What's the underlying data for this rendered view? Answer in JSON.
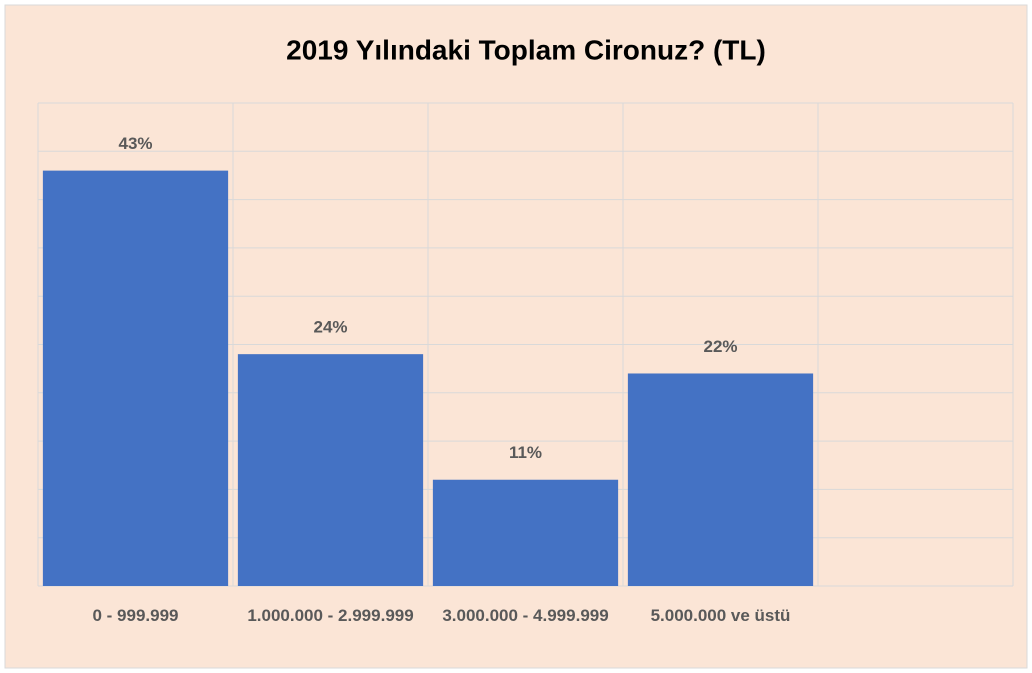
{
  "chart_data": {
    "type": "bar",
    "title": "2019 Yılındaki Toplam Cironuz? (TL)",
    "categories": [
      "0 - 999.999",
      "1.000.000 - 2.999.999",
      "3.000.000 - 4.999.999",
      "5.000.000 ve üstü",
      null
    ],
    "values": [
      43,
      24,
      11,
      22,
      null
    ],
    "value_labels": [
      "43%",
      "24%",
      "11%",
      "22%",
      null
    ],
    "color": "#4472c4",
    "ylim": [
      0,
      50
    ],
    "yticks": [
      0,
      5,
      10,
      15,
      20,
      25,
      30,
      35,
      40,
      45,
      50
    ],
    "grid": true
  }
}
